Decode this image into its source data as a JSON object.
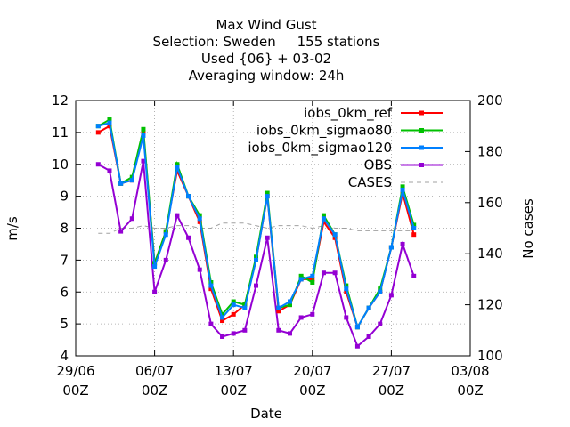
{
  "chart_data": {
    "type": "line",
    "title_lines": [
      "Max Wind Gust",
      "Selection: Sweden     155 stations",
      "Used {06} + 03-02",
      "Averaging window: 24h"
    ],
    "xlabel": "Date",
    "ylabel": "m/s",
    "y2label": "No cases",
    "x_ticks": [
      {
        "day": 0,
        "line1": "29/06",
        "line2": "00Z"
      },
      {
        "day": 7,
        "line1": "06/07",
        "line2": "00Z"
      },
      {
        "day": 14,
        "line1": "13/07",
        "line2": "00Z"
      },
      {
        "day": 21,
        "line1": "20/07",
        "line2": "00Z"
      },
      {
        "day": 28,
        "line1": "27/07",
        "line2": "00Z"
      },
      {
        "day": 35,
        "line1": "03/08",
        "line2": "00Z"
      }
    ],
    "xlim_days": [
      0,
      35
    ],
    "ylim": [
      4,
      12
    ],
    "y_ticks": [
      4,
      5,
      6,
      7,
      8,
      9,
      10,
      11,
      12
    ],
    "y2lim": [
      100,
      200
    ],
    "y2_ticks": [
      100,
      120,
      140,
      160,
      180,
      200
    ],
    "grid": "dotted",
    "legend_position": "top-right",
    "x_days": [
      2,
      3,
      4,
      5,
      6,
      7,
      8,
      9,
      10,
      11,
      12,
      13,
      14,
      15,
      16,
      17,
      18,
      19,
      20,
      21,
      22,
      23,
      24,
      25,
      26,
      27,
      28,
      29,
      30
    ],
    "series": [
      {
        "name": "iobs_0km_ref",
        "color": "#ff0000",
        "values": [
          11.0,
          11.2,
          9.4,
          9.5,
          11.0,
          6.9,
          7.9,
          9.8,
          9.0,
          8.2,
          6.1,
          5.1,
          5.3,
          5.6,
          7.0,
          9.0,
          5.4,
          5.6,
          6.4,
          6.4,
          8.2,
          7.7,
          6.0,
          4.9,
          5.5,
          6.0,
          7.4,
          9.1,
          7.8
        ]
      },
      {
        "name": "iobs_0km_sigmao80",
        "color": "#00c000",
        "values": [
          11.2,
          11.4,
          9.4,
          9.6,
          11.1,
          6.9,
          7.9,
          10.0,
          9.0,
          8.4,
          6.3,
          5.3,
          5.7,
          5.6,
          7.1,
          9.1,
          5.5,
          5.6,
          6.5,
          6.3,
          8.4,
          7.8,
          6.2,
          4.9,
          5.5,
          6.1,
          7.4,
          9.3,
          8.1
        ]
      },
      {
        "name": "iobs_0km_sigmao120",
        "color": "#0080ff",
        "values": [
          11.2,
          11.3,
          9.4,
          9.5,
          10.9,
          6.8,
          7.8,
          9.9,
          9.0,
          8.3,
          6.2,
          5.2,
          5.6,
          5.5,
          7.0,
          9.0,
          5.5,
          5.7,
          6.4,
          6.5,
          8.3,
          7.8,
          6.1,
          4.9,
          5.5,
          6.0,
          7.4,
          9.2,
          8.0
        ]
      },
      {
        "name": "OBS",
        "color": "#9400d3",
        "values": [
          10.0,
          9.8,
          7.9,
          8.3,
          10.1,
          6.0,
          7.0,
          8.4,
          7.7,
          6.7,
          5.0,
          4.6,
          4.7,
          4.8,
          6.2,
          7.7,
          4.8,
          4.7,
          5.2,
          5.3,
          6.6,
          6.6,
          5.2,
          4.3,
          4.6,
          5.0,
          5.9,
          7.5,
          6.5
        ]
      },
      {
        "name": "CASES",
        "color": "#a0a0a0",
        "axis": "y2",
        "dashed": true,
        "values": [
          148,
          148,
          150,
          150,
          151,
          150,
          150,
          151,
          151,
          150,
          150,
          152,
          152,
          152,
          151,
          150,
          151,
          151,
          151,
          150,
          151,
          150,
          150,
          149,
          149,
          149,
          149,
          149,
          149
        ]
      }
    ]
  }
}
